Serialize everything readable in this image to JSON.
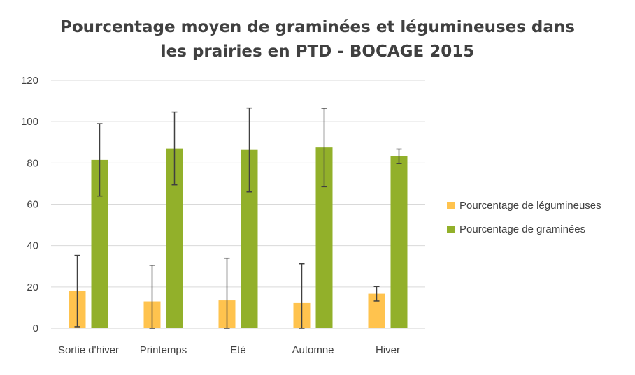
{
  "chart_data": {
    "type": "bar",
    "title_line1": "Pourcentage moyen de graminées et légumineuses dans",
    "title_line2": "les prairies en PTD - BOCAGE 2015",
    "categories": [
      "Sortie d'hiver",
      "Printemps",
      "Eté",
      "Automne",
      "Hiver"
    ],
    "series": [
      {
        "name": "Pourcentage de légumineuses",
        "color": "#FFC34E",
        "values": [
          18,
          13,
          13.5,
          12.2,
          16.7
        ],
        "error": [
          17.3,
          17.5,
          20.4,
          19,
          3.5
        ]
      },
      {
        "name": "Pourcentage de graminées",
        "color": "#92B02A",
        "values": [
          81.5,
          87,
          86.3,
          87.5,
          83.2
        ],
        "error": [
          17.5,
          17.6,
          20.3,
          19,
          3.5
        ]
      }
    ],
    "ylim": [
      0,
      120
    ],
    "yticks": [
      0,
      20,
      40,
      60,
      80,
      100,
      120
    ],
    "grid": true,
    "legend_position": "right"
  }
}
